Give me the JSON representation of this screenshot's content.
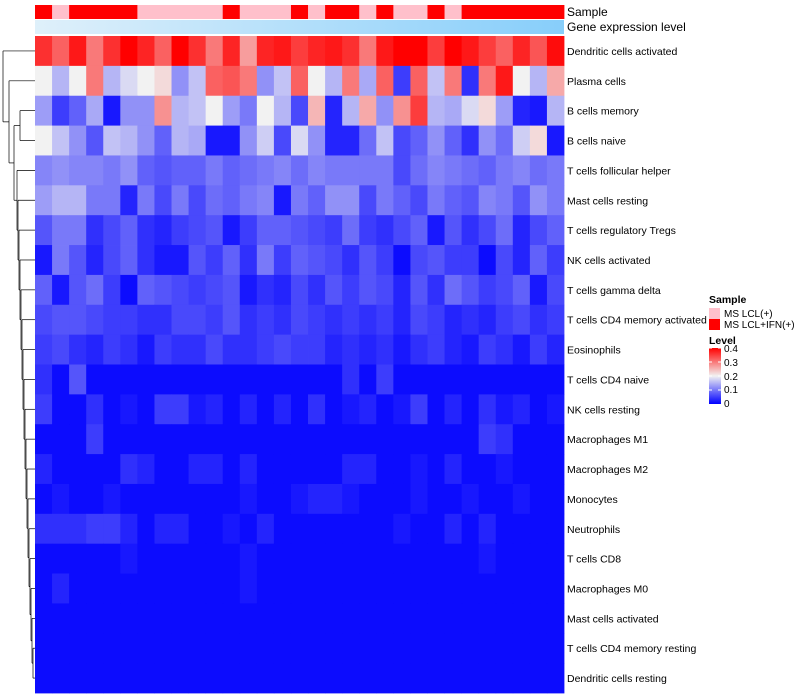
{
  "chart_data": {
    "type": "heatmap",
    "annotation_labels": [
      "Sample",
      "Gene expression level"
    ],
    "row_labels": [
      "Dendritic cells activated",
      "Plasma cells",
      "B cells memory",
      "B cells naive",
      "T cells follicular helper",
      "Mast cells resting",
      "T cells regulatory  Tregs",
      "NK cells activated",
      "T cells gamma delta",
      "T cells CD4 memory activated",
      "Eosinophils",
      "T cells CD4 naive",
      "NK cells resting",
      "Macrophages M1",
      "Macrophages M2",
      "Monocytes",
      "Neutrophils",
      "T cells CD8",
      "Macrophages M0",
      "Mast cells activated",
      "T cells CD4 memory resting",
      "Dendritic cells resting"
    ],
    "sample_groups": [
      1,
      0,
      1,
      1,
      1,
      1,
      0,
      0,
      0,
      0,
      0,
      1,
      0,
      0,
      0,
      1,
      0,
      1,
      1,
      0,
      1,
      0,
      0,
      1,
      0,
      1,
      1,
      1,
      1,
      1,
      1
    ],
    "values": [
      [
        0.36,
        0.32,
        0.38,
        0.3,
        0.36,
        0.4,
        0.37,
        0.32,
        0.4,
        0.36,
        0.3,
        0.37,
        0.27,
        0.37,
        0.38,
        0.35,
        0.37,
        0.38,
        0.36,
        0.3,
        0.38,
        0.4,
        0.4,
        0.35,
        0.4,
        0.38,
        0.35,
        0.32,
        0.37,
        0.33,
        0.39
      ],
      [
        0.2,
        0.15,
        0.2,
        0.3,
        0.15,
        0.18,
        0.2,
        0.22,
        0.12,
        0.16,
        0.32,
        0.33,
        0.3,
        0.12,
        0.16,
        0.32,
        0.2,
        0.15,
        0.3,
        0.14,
        0.32,
        0.05,
        0.32,
        0.16,
        0.3,
        0.04,
        0.3,
        0.38,
        0.2,
        0.15,
        0.26
      ],
      [
        0.13,
        0.05,
        0.08,
        0.14,
        0.02,
        0.12,
        0.12,
        0.28,
        0.15,
        0.16,
        0.2,
        0.13,
        0.1,
        0.2,
        0.15,
        0.06,
        0.25,
        0.03,
        0.15,
        0.26,
        0.12,
        0.28,
        0.35,
        0.15,
        0.14,
        0.18,
        0.22,
        0.13,
        0.03,
        0.02,
        0.15
      ],
      [
        0.2,
        0.16,
        0.12,
        0.07,
        0.16,
        0.15,
        0.12,
        0.08,
        0.15,
        0.14,
        0.02,
        0.02,
        0.12,
        0.17,
        0.06,
        0.18,
        0.12,
        0.03,
        0.03,
        0.09,
        0.16,
        0.06,
        0.08,
        0.12,
        0.08,
        0.04,
        0.12,
        0.09,
        0.17,
        0.22,
        0.02
      ],
      [
        0.11,
        0.12,
        0.11,
        0.11,
        0.1,
        0.12,
        0.08,
        0.07,
        0.08,
        0.08,
        0.1,
        0.08,
        0.09,
        0.1,
        0.11,
        0.09,
        0.11,
        0.1,
        0.1,
        0.1,
        0.1,
        0.06,
        0.09,
        0.11,
        0.1,
        0.09,
        0.08,
        0.1,
        0.11,
        0.09,
        0.1
      ],
      [
        0.13,
        0.15,
        0.15,
        0.1,
        0.1,
        0.03,
        0.1,
        0.06,
        0.1,
        0.06,
        0.09,
        0.08,
        0.1,
        0.11,
        0.02,
        0.1,
        0.08,
        0.12,
        0.12,
        0.06,
        0.1,
        0.08,
        0.06,
        0.1,
        0.08,
        0.07,
        0.11,
        0.1,
        0.07,
        0.12,
        0.1
      ],
      [
        0.07,
        0.1,
        0.1,
        0.04,
        0.06,
        0.08,
        0.04,
        0.03,
        0.05,
        0.06,
        0.07,
        0.02,
        0.05,
        0.08,
        0.08,
        0.07,
        0.06,
        0.05,
        0.09,
        0.05,
        0.04,
        0.06,
        0.08,
        0.02,
        0.07,
        0.04,
        0.06,
        0.09,
        0.03,
        0.06,
        0.08
      ],
      [
        0.02,
        0.1,
        0.07,
        0.03,
        0.06,
        0.08,
        0.04,
        0.02,
        0.02,
        0.07,
        0.05,
        0.08,
        0.04,
        0.1,
        0.05,
        0.08,
        0.07,
        0.06,
        0.04,
        0.07,
        0.05,
        0.01,
        0.06,
        0.07,
        0.05,
        0.05,
        0.01,
        0.06,
        0.03,
        0.08,
        0.05
      ],
      [
        0.08,
        0.02,
        0.07,
        0.09,
        0.05,
        0.01,
        0.08,
        0.07,
        0.06,
        0.05,
        0.06,
        0.07,
        0.02,
        0.04,
        0.03,
        0.06,
        0.04,
        0.07,
        0.05,
        0.07,
        0.06,
        0.03,
        0.07,
        0.04,
        0.09,
        0.07,
        0.05,
        0.06,
        0.08,
        0.02,
        0.06
      ],
      [
        0.06,
        0.07,
        0.07,
        0.06,
        0.05,
        0.05,
        0.04,
        0.04,
        0.06,
        0.06,
        0.05,
        0.07,
        0.04,
        0.05,
        0.04,
        0.06,
        0.05,
        0.04,
        0.05,
        0.04,
        0.05,
        0.03,
        0.06,
        0.05,
        0.03,
        0.04,
        0.03,
        0.05,
        0.06,
        0.04,
        0.05
      ],
      [
        0.05,
        0.06,
        0.04,
        0.03,
        0.05,
        0.04,
        0.02,
        0.05,
        0.04,
        0.04,
        0.06,
        0.04,
        0.04,
        0.05,
        0.06,
        0.05,
        0.05,
        0.03,
        0.04,
        0.03,
        0.04,
        0.02,
        0.04,
        0.05,
        0.03,
        0.02,
        0.05,
        0.04,
        0.02,
        0.05,
        0.03
      ],
      [
        0.04,
        0.01,
        0.07,
        0.01,
        0.01,
        0.01,
        0.01,
        0.01,
        0.01,
        0.01,
        0.01,
        0.01,
        0.01,
        0.01,
        0.01,
        0.01,
        0.01,
        0.01,
        0.04,
        0.01,
        0.05,
        0.01,
        0.01,
        0.01,
        0.01,
        0.01,
        0.01,
        0.01,
        0.01,
        0.01,
        0.01
      ],
      [
        0.05,
        0.01,
        0.01,
        0.04,
        0.01,
        0.02,
        0.01,
        0.05,
        0.05,
        0.02,
        0.03,
        0.01,
        0.03,
        0.01,
        0.03,
        0.01,
        0.04,
        0.01,
        0.02,
        0.03,
        0.01,
        0.02,
        0.05,
        0.01,
        0.03,
        0.01,
        0.04,
        0.02,
        0.03,
        0.01,
        0.02
      ],
      [
        0.01,
        0.01,
        0.01,
        0.05,
        0.01,
        0.01,
        0.01,
        0.01,
        0.01,
        0.01,
        0.01,
        0.01,
        0.01,
        0.01,
        0.01,
        0.01,
        0.01,
        0.01,
        0.01,
        0.01,
        0.01,
        0.01,
        0.01,
        0.01,
        0.01,
        0.01,
        0.05,
        0.04,
        0.01,
        0.01,
        0.01
      ],
      [
        0.03,
        0.01,
        0.01,
        0.01,
        0.01,
        0.04,
        0.03,
        0.01,
        0.01,
        0.03,
        0.03,
        0.01,
        0.03,
        0.01,
        0.01,
        0.01,
        0.01,
        0.01,
        0.03,
        0.03,
        0.01,
        0.01,
        0.02,
        0.01,
        0.03,
        0.01,
        0.01,
        0.02,
        0.01,
        0.01,
        0.01
      ],
      [
        0.01,
        0.02,
        0.01,
        0.01,
        0.02,
        0.01,
        0.01,
        0.01,
        0.01,
        0.01,
        0.01,
        0.01,
        0.02,
        0.01,
        0.01,
        0.02,
        0.03,
        0.03,
        0.02,
        0.01,
        0.01,
        0.01,
        0.02,
        0.01,
        0.01,
        0.02,
        0.01,
        0.01,
        0.02,
        0.01,
        0.01
      ],
      [
        0.04,
        0.04,
        0.04,
        0.05,
        0.05,
        0.03,
        0.01,
        0.03,
        0.03,
        0.01,
        0.01,
        0.02,
        0.01,
        0.03,
        0.01,
        0.01,
        0.01,
        0.01,
        0.01,
        0.01,
        0.01,
        0.02,
        0.01,
        0.01,
        0.03,
        0.01,
        0.03,
        0.01,
        0.01,
        0.01,
        0.01
      ],
      [
        0.01,
        0.01,
        0.01,
        0.01,
        0.01,
        0.02,
        0.01,
        0.01,
        0.01,
        0.01,
        0.01,
        0.01,
        0.02,
        0.01,
        0.01,
        0.01,
        0.01,
        0.01,
        0.01,
        0.01,
        0.01,
        0.01,
        0.01,
        0.01,
        0.01,
        0.01,
        0.02,
        0.01,
        0.01,
        0.01,
        0.01
      ],
      [
        0.01,
        0.03,
        0.01,
        0.01,
        0.01,
        0.01,
        0.01,
        0.01,
        0.01,
        0.01,
        0.01,
        0.01,
        0.02,
        0.01,
        0.01,
        0.01,
        0.01,
        0.01,
        0.01,
        0.01,
        0.01,
        0.01,
        0.01,
        0.01,
        0.01,
        0.01,
        0.01,
        0.01,
        0.01,
        0.01,
        0.01
      ],
      [
        0.01,
        0.01,
        0.01,
        0.01,
        0.01,
        0.01,
        0.01,
        0.01,
        0.01,
        0.01,
        0.01,
        0.01,
        0.01,
        0.01,
        0.01,
        0.01,
        0.01,
        0.01,
        0.01,
        0.01,
        0.01,
        0.01,
        0.01,
        0.01,
        0.01,
        0.01,
        0.01,
        0.01,
        0.01,
        0.01,
        0.01
      ],
      [
        0.01,
        0.01,
        0.01,
        0.01,
        0.01,
        0.01,
        0.01,
        0.01,
        0.01,
        0.01,
        0.01,
        0.01,
        0.01,
        0.01,
        0.01,
        0.01,
        0.01,
        0.01,
        0.01,
        0.01,
        0.01,
        0.01,
        0.01,
        0.01,
        0.01,
        0.01,
        0.01,
        0.01,
        0.01,
        0.01,
        0.01
      ],
      [
        0.01,
        0.01,
        0.01,
        0.01,
        0.01,
        0.01,
        0.01,
        0.01,
        0.01,
        0.01,
        0.01,
        0.01,
        0.01,
        0.01,
        0.01,
        0.01,
        0.01,
        0.01,
        0.01,
        0.01,
        0.01,
        0.01,
        0.01,
        0.01,
        0.01,
        0.01,
        0.01,
        0.01,
        0.01,
        0.01,
        0.01
      ]
    ],
    "color_scale": {
      "low": "#0000ff",
      "mid": "#f2f2f2",
      "high": "#ff0000",
      "domain": [
        0,
        0.2,
        0.4
      ]
    },
    "expression_color": "#87cefa",
    "legend_sample": {
      "title": "Sample",
      "items": [
        {
          "label": "MS LCL(+)",
          "color": "#ffc0cb"
        },
        {
          "label": "MS LCL+IFN(+)",
          "color": "#ff0000"
        }
      ]
    },
    "legend_level": {
      "title": "Level",
      "ticks": [
        "0.4",
        "0.3",
        "0.2",
        "0.1",
        "0"
      ]
    }
  }
}
